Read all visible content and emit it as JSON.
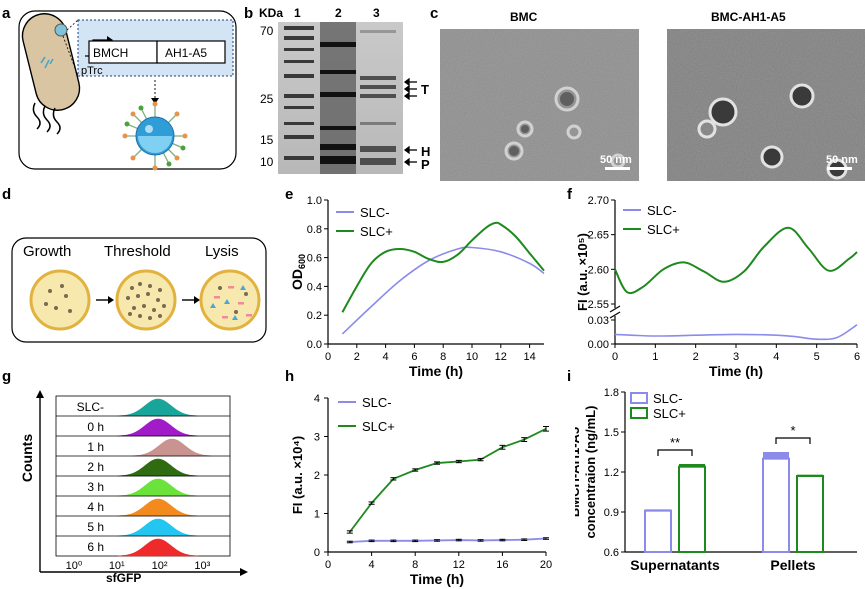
{
  "panels": {
    "a": {
      "letter": "a",
      "construct_genes": [
        "BMCH",
        "AH1-A5"
      ],
      "promoter": "pTrc"
    },
    "b": {
      "letter": "b",
      "unit": "KDa",
      "lanes": [
        "1",
        "2",
        "3"
      ],
      "markers": [
        "70",
        "25",
        "15",
        "10"
      ],
      "band_labels": [
        "T",
        "H",
        "P"
      ]
    },
    "c": {
      "letter": "c",
      "images": [
        {
          "title": "BMC",
          "scale_bar": "50 nm"
        },
        {
          "title": "BMC-AH1-A5",
          "scale_bar": "50 nm"
        }
      ]
    },
    "d": {
      "letter": "d",
      "stages": [
        "Growth",
        "Threshold",
        "Lysis"
      ]
    },
    "g": {
      "letter": "g",
      "ylabel": "Counts",
      "xlabel": "sfGFP",
      "ticks": [
        "10⁰",
        "10¹",
        "10²",
        "10³"
      ],
      "tracks": [
        {
          "label": "SLC-",
          "color": "#1aa59a"
        },
        {
          "label": "0 h",
          "color": "#a11bc8"
        },
        {
          "label": "1 h",
          "color": "#c9948f"
        },
        {
          "label": "2 h",
          "color": "#2f6b10"
        },
        {
          "label": "3 h",
          "color": "#6be33c"
        },
        {
          "label": "4 h",
          "color": "#f28a1e"
        },
        {
          "label": "5 h",
          "color": "#22c6f0"
        },
        {
          "label": "6 h",
          "color": "#ef2a2a"
        }
      ]
    }
  },
  "chart_data": [
    {
      "id": "e",
      "type": "line",
      "title": "",
      "xlabel": "Time (h)",
      "ylabel": "OD600",
      "xlim": [
        0,
        15
      ],
      "ylim": [
        0,
        1.0
      ],
      "xticks": [
        0,
        2,
        4,
        6,
        8,
        10,
        12,
        14
      ],
      "yticks": [
        0.0,
        0.2,
        0.4,
        0.6,
        0.8,
        1.0
      ],
      "legend": "top-left",
      "series": [
        {
          "name": "SLC-",
          "color": "#8b8bea",
          "x": [
            1,
            3,
            5,
            7,
            9,
            10,
            12,
            14,
            15
          ],
          "y": [
            0.07,
            0.26,
            0.44,
            0.58,
            0.66,
            0.67,
            0.64,
            0.56,
            0.49
          ]
        },
        {
          "name": "SLC+",
          "color": "#1e8a1e",
          "x": [
            1,
            2,
            3,
            4,
            5,
            6,
            7,
            8,
            9,
            10,
            11,
            11.6,
            12,
            13,
            14,
            15
          ],
          "y": [
            0.22,
            0.4,
            0.56,
            0.64,
            0.66,
            0.64,
            0.59,
            0.57,
            0.62,
            0.72,
            0.81,
            0.84,
            0.83,
            0.75,
            0.63,
            0.51
          ]
        }
      ]
    },
    {
      "id": "f",
      "type": "line",
      "title": "",
      "xlabel": "Time (h)",
      "ylabel": "FI (a.u. ×10⁵)",
      "xlim": [
        0,
        6
      ],
      "xticks": [
        0,
        1,
        2,
        3,
        4,
        5,
        6
      ],
      "yticks_upper": [
        2.55,
        2.6,
        2.65,
        2.7
      ],
      "yticks_lower": [
        0.0,
        0.03
      ],
      "axis_break": true,
      "legend": "top-left",
      "series": [
        {
          "name": "SLC-",
          "color": "#8b8bea",
          "x": [
            0,
            1,
            2,
            3,
            4,
            4.5,
            5,
            5.5,
            6
          ],
          "y": [
            0.012,
            0.01,
            0.011,
            0.012,
            0.011,
            0.009,
            0.006,
            0.008,
            0.024
          ]
        },
        {
          "name": "SLC+",
          "color": "#1e8a1e",
          "x": [
            0,
            0.3,
            0.7,
            1.2,
            1.7,
            2.2,
            2.7,
            3.2,
            3.7,
            4.3,
            4.8,
            5.3,
            5.8,
            6
          ],
          "y": [
            2.6,
            2.567,
            2.575,
            2.6,
            2.61,
            2.597,
            2.582,
            2.597,
            2.633,
            2.66,
            2.63,
            2.598,
            2.615,
            2.625
          ]
        }
      ]
    },
    {
      "id": "h",
      "type": "line",
      "title": "",
      "xlabel": "Time (h)",
      "ylabel": "FI (a.u. ×10⁴)",
      "xlim": [
        0,
        20
      ],
      "ylim": [
        0,
        4
      ],
      "xticks": [
        0,
        4,
        8,
        12,
        16,
        20
      ],
      "yticks": [
        0,
        1,
        2,
        3,
        4
      ],
      "legend": "top-left",
      "series": [
        {
          "name": "SLC-",
          "color": "#8b8bea",
          "x": [
            2,
            4,
            6,
            8,
            10,
            12,
            14,
            16,
            18,
            20
          ],
          "y": [
            0.26,
            0.29,
            0.29,
            0.29,
            0.3,
            0.31,
            0.3,
            0.31,
            0.32,
            0.35
          ],
          "err": [
            0.02,
            0.02,
            0.02,
            0.02,
            0.02,
            0.02,
            0.02,
            0.02,
            0.02,
            0.02
          ]
        },
        {
          "name": "SLC+",
          "color": "#1e8a1e",
          "x": [
            2,
            4,
            6,
            8,
            10,
            12,
            14,
            16,
            18,
            20
          ],
          "y": [
            0.52,
            1.27,
            1.9,
            2.13,
            2.31,
            2.35,
            2.4,
            2.72,
            2.92,
            3.2
          ],
          "err": [
            0.03,
            0.03,
            0.03,
            0.03,
            0.03,
            0.03,
            0.03,
            0.05,
            0.05,
            0.06
          ]
        }
      ]
    },
    {
      "id": "i",
      "type": "bar",
      "title": "",
      "xlabel": "",
      "ylabel": "BMCH-AH1-A5 concentraion (ng/mL)",
      "ylabel_lines": [
        "BMCH-AH1-A5",
        "concentraion (ng/mL)"
      ],
      "categories": [
        "Supernatants",
        "Pellets"
      ],
      "ylim": [
        0.6,
        1.8
      ],
      "yticks": [
        "0.6",
        "0.9",
        "1.2",
        "1.5",
        "1.8"
      ],
      "legend": "top-left",
      "series": [
        {
          "name": "SLC-",
          "color": "#8b8bea",
          "values": [
            0.91,
            1.3
          ],
          "err": [
            0.01,
            0.05
          ]
        },
        {
          "name": "SLC+",
          "color": "#1e8a1e",
          "values": [
            1.24,
            1.17
          ],
          "err": [
            0.02,
            0.01
          ]
        }
      ],
      "significance": [
        "**",
        "*"
      ]
    }
  ]
}
